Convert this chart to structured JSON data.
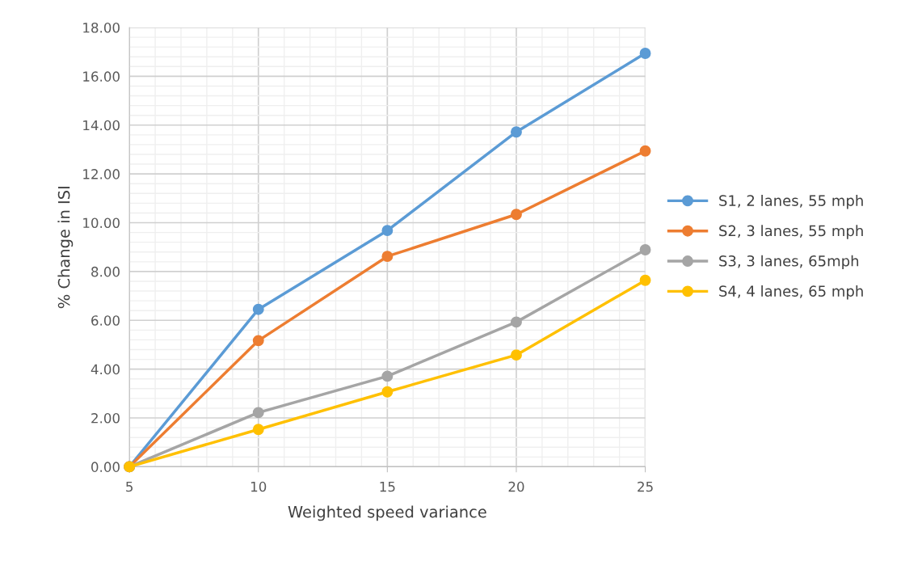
{
  "chart_data": {
    "type": "line",
    "xlabel": "Weighted speed variance",
    "ylabel": "% Change in ISI",
    "x": [
      5,
      10,
      15,
      20,
      25
    ],
    "series": [
      {
        "name": "S1, 2 lanes, 55 mph",
        "color": "#5b9bd5",
        "values": [
          0,
          6.45,
          9.68,
          13.72,
          16.94
        ]
      },
      {
        "name": "S2, 3 lanes, 55 mph",
        "color": "#ed7d31",
        "values": [
          0,
          5.17,
          8.62,
          10.34,
          12.94
        ]
      },
      {
        "name": "S3, 3 lanes, 65mph",
        "color": "#a5a5a5",
        "values": [
          0,
          2.22,
          3.71,
          5.93,
          8.89
        ]
      },
      {
        "name": "S4, 4 lanes, 65 mph",
        "color": "#ffc000",
        "values": [
          0,
          1.53,
          3.07,
          4.58,
          7.64
        ]
      }
    ],
    "xlim": [
      5,
      25
    ],
    "xticks": [
      5,
      10,
      15,
      20,
      25
    ],
    "ylim": [
      0,
      18
    ],
    "yticks": [
      {
        "value": 0,
        "label": "0.00"
      },
      {
        "value": 2,
        "label": "2.00"
      },
      {
        "value": 4,
        "label": "4.00"
      },
      {
        "value": 6,
        "label": "6.00"
      },
      {
        "value": 8,
        "label": "8.00"
      },
      {
        "value": 10,
        "label": "10.00"
      },
      {
        "value": 12,
        "label": "12.00"
      },
      {
        "value": 14,
        "label": "14.00"
      },
      {
        "value": 16,
        "label": "16.00"
      },
      {
        "value": 18,
        "label": "18.00"
      }
    ],
    "grid": true,
    "legend": "right",
    "marker": "circle",
    "line_style": "solid"
  }
}
